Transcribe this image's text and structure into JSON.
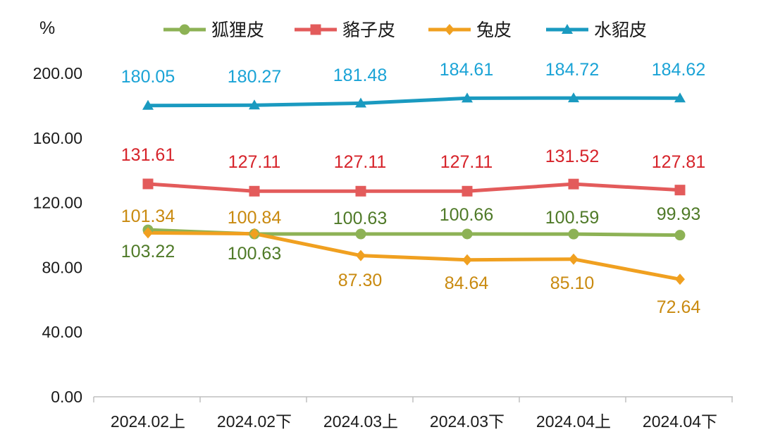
{
  "chart_data": {
    "type": "line",
    "title": "",
    "ylabel": "%",
    "xlabel": "",
    "categories": [
      "2024.02上",
      "2024.02下",
      "2024.03上",
      "2024.03下",
      "2024.04上",
      "2024.04下"
    ],
    "ylim": [
      0,
      200
    ],
    "yticks": [
      "200.00",
      "160.00",
      "120.00",
      "80.00",
      "40.00",
      "0.00"
    ],
    "legend_position": "top",
    "grid": false,
    "series": [
      {
        "name": "狐狸皮",
        "color": "#8db255",
        "label_color": "#4f7a28",
        "marker": "circle",
        "values": [
          103.22,
          100.63,
          100.63,
          100.66,
          100.59,
          99.93
        ],
        "labels": [
          "103.22",
          "100.63",
          "100.63",
          "100.66",
          "100.59",
          "99.93"
        ]
      },
      {
        "name": "貉子皮",
        "color": "#e35b5b",
        "label_color": "#d6232a",
        "marker": "square",
        "values": [
          131.61,
          127.11,
          127.11,
          127.11,
          131.52,
          127.81
        ],
        "labels": [
          "131.61",
          "127.11",
          "127.11",
          "127.11",
          "131.52",
          "127.81"
        ]
      },
      {
        "name": "兔皮",
        "color": "#f0a020",
        "label_color": "#c98a10",
        "marker": "diamond",
        "values": [
          101.34,
          100.84,
          87.3,
          84.64,
          85.1,
          72.64
        ],
        "labels": [
          "101.34",
          "100.84",
          "87.30",
          "84.64",
          "85.10",
          "72.64"
        ]
      },
      {
        "name": "水貂皮",
        "color": "#1a9ac0",
        "label_color": "#1aa3d6",
        "marker": "triangle",
        "values": [
          180.05,
          180.27,
          181.48,
          184.61,
          184.72,
          184.62
        ],
        "labels": [
          "180.05",
          "180.27",
          "181.48",
          "184.61",
          "184.72",
          "184.62"
        ]
      }
    ]
  }
}
